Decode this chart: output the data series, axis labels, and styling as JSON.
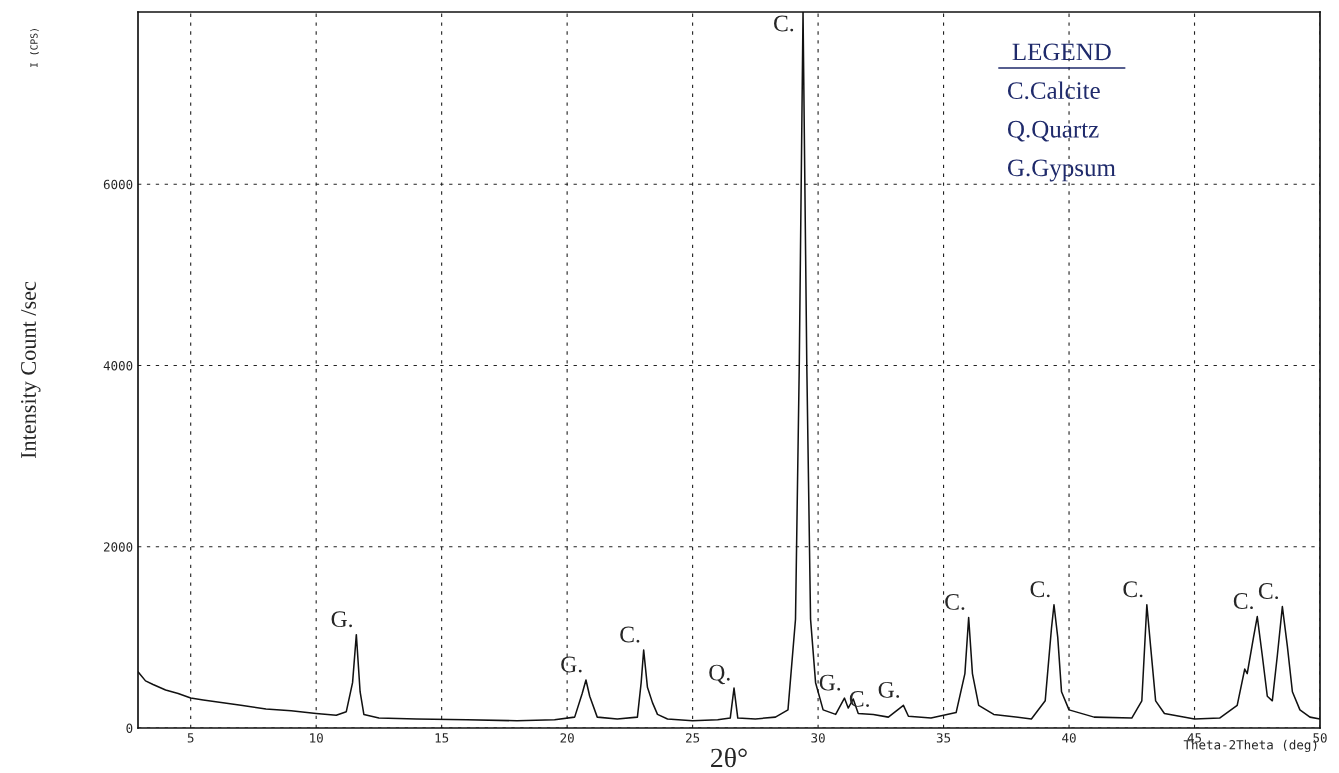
{
  "chart_data": {
    "type": "line",
    "xlabel": "2θ°",
    "ylabel": "Intensity Count /sec",
    "x": [
      2.9,
      3.2,
      3.5,
      4,
      4.5,
      5,
      5.5,
      6,
      7,
      8,
      9,
      10,
      10.8,
      11.2,
      11.45,
      11.6,
      11.75,
      11.9,
      12.5,
      14,
      16,
      18,
      19.5,
      20.3,
      20.6,
      20.75,
      20.9,
      21.2,
      22,
      22.8,
      22.95,
      23.05,
      23.2,
      23.4,
      23.6,
      24,
      25,
      26,
      26.5,
      26.65,
      26.8,
      27.5,
      28.3,
      28.8,
      29.1,
      29.25,
      29.4,
      29.55,
      29.7,
      29.9,
      30.2,
      30.7,
      31.05,
      31.2,
      31.4,
      31.6,
      32.2,
      32.8,
      33.4,
      33.6,
      34.5,
      35.5,
      35.85,
      36.0,
      36.15,
      36.4,
      37,
      38.5,
      39.05,
      39.3,
      39.4,
      39.55,
      39.7,
      40,
      41,
      42.5,
      42.9,
      43.1,
      43.25,
      43.45,
      43.8,
      45,
      46,
      46.7,
      47.0,
      47.1,
      47.35,
      47.5,
      47.7,
      47.9,
      48.1,
      48.3,
      48.5,
      48.7,
      48.9,
      49.2,
      49.6,
      50
    ],
    "series": [
      {
        "color": "#111111",
        "values": [
          620,
          520,
          480,
          420,
          380,
          330,
          310,
          290,
          250,
          210,
          190,
          160,
          140,
          180,
          500,
          1030,
          400,
          150,
          110,
          100,
          90,
          80,
          90,
          120,
          380,
          530,
          350,
          120,
          100,
          120,
          500,
          860,
          450,
          280,
          150,
          100,
          80,
          90,
          110,
          440,
          110,
          100,
          120,
          200,
          1200,
          4000,
          7900,
          4000,
          1200,
          500,
          200,
          150,
          330,
          220,
          320,
          160,
          150,
          120,
          250,
          130,
          110,
          170,
          600,
          1220,
          600,
          250,
          150,
          100,
          300,
          1100,
          1360,
          1000,
          400,
          200,
          120,
          110,
          300,
          1360,
          900,
          300,
          160,
          100,
          110,
          250,
          650,
          600,
          1000,
          1230,
          800,
          350,
          300,
          800,
          1340,
          900,
          400,
          200,
          120,
          100
        ]
      }
    ],
    "xlim": [
      2.9,
      50
    ],
    "xticks": [
      5,
      10,
      15,
      20,
      25,
      30,
      35,
      40,
      45,
      50
    ],
    "ylim": [
      0,
      7900
    ],
    "yticks": [
      0,
      2000,
      4000,
      6000
    ],
    "grid": true,
    "marker": "none",
    "line_style": "solid",
    "legend": false,
    "annotations": [
      {
        "text": "G.",
        "x": 11.6,
        "y": 1030
      },
      {
        "text": "G.",
        "x": 20.75,
        "y": 530
      },
      {
        "text": "C.",
        "x": 23.05,
        "y": 860
      },
      {
        "text": "Q.",
        "x": 26.65,
        "y": 440
      },
      {
        "text": "C.",
        "x": 29.4,
        "y": 7900
      },
      {
        "text": "G.",
        "x": 31.05,
        "y": 330
      },
      {
        "text": "C.",
        "x": 32.2,
        "y": 150
      },
      {
        "text": "G.",
        "x": 33.4,
        "y": 250
      },
      {
        "text": "C.",
        "x": 36.0,
        "y": 1220
      },
      {
        "text": "C.",
        "x": 39.4,
        "y": 1360
      },
      {
        "text": "C.",
        "x": 43.1,
        "y": 1360
      },
      {
        "text": "C.",
        "x": 47.5,
        "y": 1230
      },
      {
        "text": "C.",
        "x": 48.5,
        "y": 1340
      },
      "I (CPS)",
      "LEGEND",
      "C.Calcite",
      "Q.Quartz",
      "G.Gypsum",
      "Theta-2Theta (deg)"
    ]
  }
}
